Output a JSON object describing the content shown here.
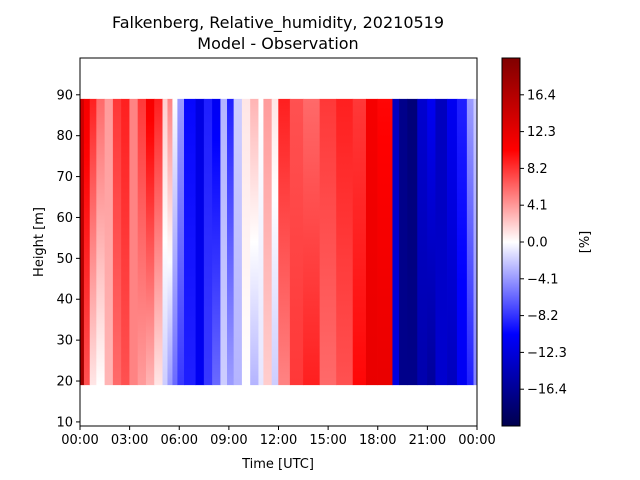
{
  "chart_data": {
    "type": "heatmap",
    "title_line1": "Falkenberg, Relative_humidity, 20210519",
    "title_line2": "Model - Observation",
    "xlabel": "Time [UTC]",
    "ylabel": "Height [m]",
    "colorbar_label": "[%]",
    "xlim_hours": [
      0,
      24
    ],
    "ylim": [
      9,
      99
    ],
    "data_height_range": [
      19,
      89
    ],
    "x_ticks": [
      {
        "value": 0,
        "label": "00:00"
      },
      {
        "value": 3,
        "label": "03:00"
      },
      {
        "value": 6,
        "label": "06:00"
      },
      {
        "value": 9,
        "label": "09:00"
      },
      {
        "value": 12,
        "label": "12:00"
      },
      {
        "value": 15,
        "label": "15:00"
      },
      {
        "value": 18,
        "label": "18:00"
      },
      {
        "value": 21,
        "label": "21:00"
      },
      {
        "value": 24,
        "label": "00:00"
      }
    ],
    "y_ticks": [
      10,
      20,
      30,
      40,
      50,
      60,
      70,
      80,
      90
    ],
    "colorbar_range": [
      -20.5,
      20.5
    ],
    "colorbar_ticks": [
      {
        "value": 16.4,
        "label": "16.4"
      },
      {
        "value": 12.3,
        "label": "12.3"
      },
      {
        "value": 8.2,
        "label": "8.2"
      },
      {
        "value": 4.1,
        "label": "4.1"
      },
      {
        "value": 0.0,
        "label": "0.0"
      },
      {
        "value": -4.1,
        "label": "−4.1"
      },
      {
        "value": -8.2,
        "label": "−8.2"
      },
      {
        "value": -12.3,
        "label": "−12.3"
      },
      {
        "value": -16.4,
        "label": "−16.4"
      }
    ],
    "colormap": "seismic",
    "colormap_stops": [
      {
        "pos": 0.0,
        "color": "#00004d"
      },
      {
        "pos": 0.25,
        "color": "#0000ff"
      },
      {
        "pos": 0.5,
        "color": "#ffffff"
      },
      {
        "pos": 0.75,
        "color": "#ff0000"
      },
      {
        "pos": 1.0,
        "color": "#800000"
      }
    ],
    "columns": [
      {
        "t0": 0.0,
        "t1": 0.25,
        "top": 14,
        "bottom": 18
      },
      {
        "t0": 0.25,
        "t1": 0.6,
        "top": 11,
        "bottom": 7
      },
      {
        "t0": 0.6,
        "t1": 1.0,
        "top": 9,
        "bottom": 1
      },
      {
        "t0": 1.0,
        "t1": 1.5,
        "top": 6,
        "bottom": 0
      },
      {
        "t0": 1.5,
        "t1": 2.0,
        "top": 4,
        "bottom": 3
      },
      {
        "t0": 2.0,
        "t1": 2.5,
        "top": 8,
        "bottom": 6
      },
      {
        "t0": 2.5,
        "t1": 3.0,
        "top": 9,
        "bottom": 7
      },
      {
        "t0": 3.0,
        "t1": 3.5,
        "top": 5,
        "bottom": 5
      },
      {
        "t0": 3.5,
        "t1": 4.0,
        "top": 8,
        "bottom": 4
      },
      {
        "t0": 4.0,
        "t1": 4.5,
        "top": 11,
        "bottom": 3
      },
      {
        "t0": 4.5,
        "t1": 5.0,
        "top": 9,
        "bottom": 1
      },
      {
        "t0": 5.0,
        "t1": 5.3,
        "top": 2,
        "bottom": -2
      },
      {
        "t0": 5.3,
        "t1": 5.6,
        "top": 5,
        "bottom": -4
      },
      {
        "t0": 5.6,
        "t1": 5.9,
        "top": 0,
        "bottom": -6
      },
      {
        "t0": 5.9,
        "t1": 6.3,
        "top": -4,
        "bottom": -8
      },
      {
        "t0": 6.3,
        "t1": 7.0,
        "top": -10,
        "bottom": -9
      },
      {
        "t0": 7.0,
        "t1": 7.5,
        "top": -12,
        "bottom": -11
      },
      {
        "t0": 7.5,
        "t1": 8.0,
        "top": -9,
        "bottom": -8
      },
      {
        "t0": 8.0,
        "t1": 8.5,
        "top": -11,
        "bottom": -6
      },
      {
        "t0": 8.5,
        "t1": 8.9,
        "top": -3,
        "bottom": -2
      },
      {
        "t0": 8.9,
        "t1": 9.3,
        "top": -9,
        "bottom": -4
      },
      {
        "t0": 9.3,
        "t1": 9.8,
        "top": -2,
        "bottom": -3
      },
      {
        "t0": 9.8,
        "t1": 10.3,
        "top": 1,
        "bottom": 0
      },
      {
        "t0": 10.3,
        "t1": 10.8,
        "top": 3,
        "bottom": -3
      },
      {
        "t0": 10.8,
        "t1": 11.1,
        "top": 0,
        "bottom": -1
      },
      {
        "t0": 11.1,
        "t1": 11.6,
        "top": 4,
        "bottom": 2
      },
      {
        "t0": 11.6,
        "t1": 12.0,
        "top": 1,
        "bottom": -2
      },
      {
        "t0": 12.0,
        "t1": 12.7,
        "top": 9,
        "bottom": 5
      },
      {
        "t0": 12.7,
        "t1": 13.5,
        "top": 7,
        "bottom": 8
      },
      {
        "t0": 13.5,
        "t1": 14.5,
        "top": 6,
        "bottom": 9
      },
      {
        "t0": 14.5,
        "t1": 15.5,
        "top": 8,
        "bottom": 6
      },
      {
        "t0": 15.5,
        "t1": 16.5,
        "top": 9,
        "bottom": 7
      },
      {
        "t0": 16.5,
        "t1": 17.3,
        "top": 8,
        "bottom": 10
      },
      {
        "t0": 17.3,
        "t1": 18.0,
        "top": 11,
        "bottom": 12
      },
      {
        "t0": 18.0,
        "t1": 18.9,
        "top": 10,
        "bottom": 12
      },
      {
        "t0": 18.9,
        "t1": 19.3,
        "top": -14,
        "bottom": -12
      },
      {
        "t0": 19.3,
        "t1": 19.8,
        "top": -17,
        "bottom": -17
      },
      {
        "t0": 19.8,
        "t1": 20.4,
        "top": -18,
        "bottom": -17
      },
      {
        "t0": 20.4,
        "t1": 21.0,
        "top": -13,
        "bottom": -15
      },
      {
        "t0": 21.0,
        "t1": 21.5,
        "top": -11,
        "bottom": -16
      },
      {
        "t0": 21.5,
        "t1": 22.2,
        "top": -14,
        "bottom": -13
      },
      {
        "t0": 22.2,
        "t1": 22.8,
        "top": -11,
        "bottom": -14
      },
      {
        "t0": 22.8,
        "t1": 23.4,
        "top": -9,
        "bottom": -11
      },
      {
        "t0": 23.4,
        "t1": 23.8,
        "top": -4,
        "bottom": -9
      },
      {
        "t0": 23.8,
        "t1": 24.0,
        "top": -2,
        "bottom": -5
      }
    ]
  }
}
